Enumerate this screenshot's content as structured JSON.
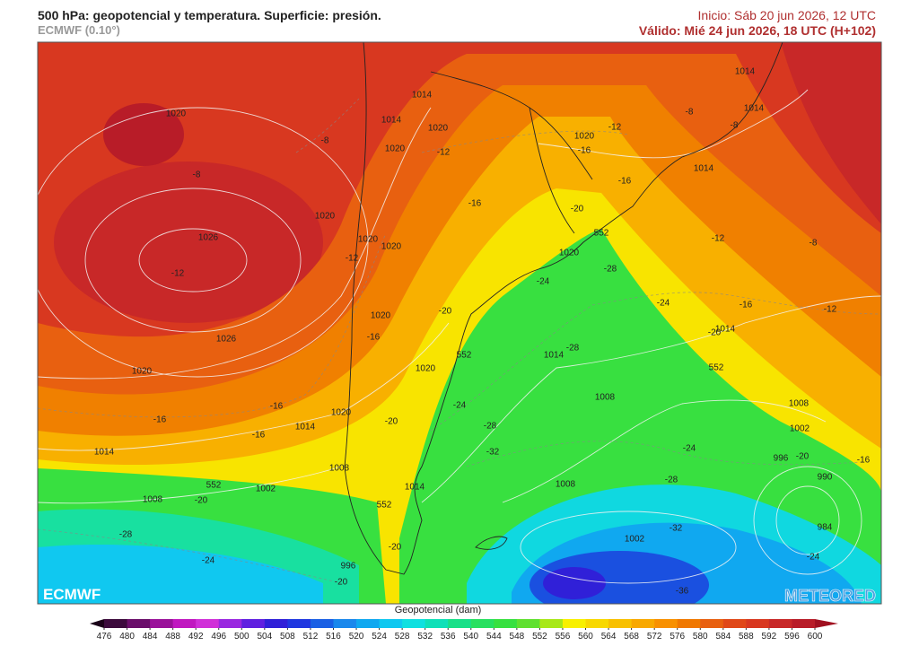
{
  "header": {
    "title": "500 hPa: geopotencial y temperatura. Superficie: presión.",
    "subtitle": "ECMWF (0.10°)",
    "init": "Inicio: Sáb 20 jun 2026, 12 UTC",
    "valid": "Válido: Mié 24 jun 2026, 18 UTC (H+102)"
  },
  "map": {
    "labels": [
      "1014",
      "1014",
      "1020",
      "-8",
      "1020",
      "-12",
      "1020",
      "-8",
      "1020",
      "-16",
      "1026",
      "1020",
      "1020",
      "-12",
      "-12",
      "1020",
      "-20",
      "-16",
      "1026",
      "1020",
      "1020",
      "1020",
      "-20",
      "-24",
      "-16",
      "-16",
      "1014",
      "-16",
      "1014",
      "1008",
      "1014",
      "552",
      "1002",
      "1008",
      "-20",
      "-28",
      "-24",
      "996",
      "-20",
      "-20",
      "552",
      "-28",
      "-32",
      "1008",
      "1008",
      "-28",
      "1014",
      "-28",
      "-24",
      "1020",
      "-20",
      "1020",
      "-16",
      "-12",
      "-16",
      "1014",
      "1014",
      "1014",
      "-8",
      "-8",
      "-12",
      "-8",
      "-16",
      "-12",
      "-24",
      "1014",
      "-20",
      "552",
      "1008",
      "1002",
      "996",
      "-20",
      "-16",
      "990",
      "-24",
      "-28",
      "-32",
      "1002",
      "984",
      "-24",
      "-36",
      "552",
      "552"
    ],
    "logo_left": "ECMWF",
    "logo_right": "METEORED"
  },
  "colorbar": {
    "label": "Geopotencial (dam)",
    "ticks": [
      476,
      480,
      484,
      488,
      492,
      496,
      500,
      504,
      508,
      512,
      516,
      520,
      524,
      528,
      532,
      536,
      540,
      544,
      548,
      552,
      556,
      560,
      564,
      568,
      572,
      576,
      580,
      584,
      588,
      592,
      596,
      600
    ],
    "colors": [
      "#1a0018",
      "#3c0a3c",
      "#6a0e6a",
      "#9a129a",
      "#c018c0",
      "#d030d8",
      "#9a28e0",
      "#6020e0",
      "#3020d8",
      "#2038e0",
      "#1a60e4",
      "#1a88ec",
      "#10a8f0",
      "#10c8f0",
      "#10e0e0",
      "#10e0b8",
      "#18e088",
      "#28e060",
      "#38e040",
      "#60e030",
      "#a8e818",
      "#f8f000",
      "#f8d800",
      "#f8c000",
      "#f8a800",
      "#f89000",
      "#f07800",
      "#e86010",
      "#e04818",
      "#d83820",
      "#c82828",
      "#b81c28",
      "#a01020"
    ]
  }
}
